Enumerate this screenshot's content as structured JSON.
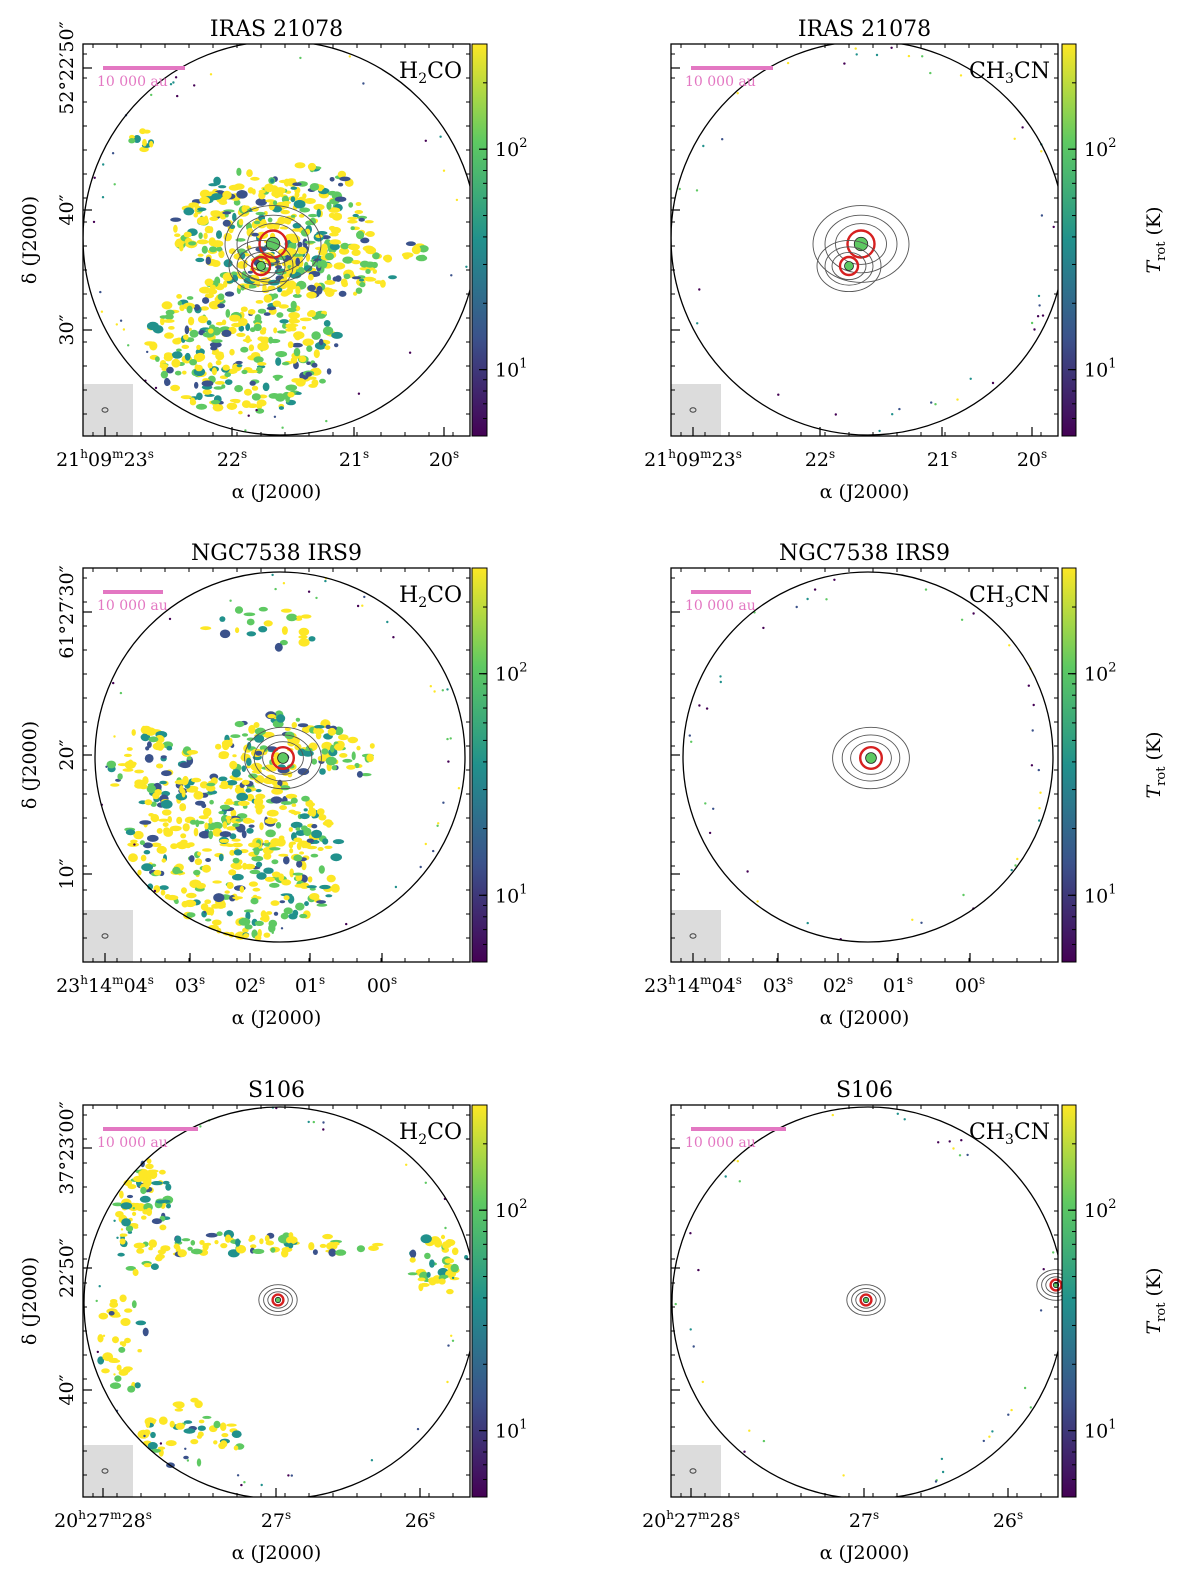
{
  "figure": {
    "ra_label": "α (J2000)",
    "dec_label": "δ (J2000)",
    "colorbar_label": "T",
    "colorbar_sub": "rot",
    "colorbar_unit": "(K)",
    "scale_bar_label": "10 000 au",
    "colormap": [
      "#440154",
      "#3b528b",
      "#21918c",
      "#5ec962",
      "#fde725"
    ]
  },
  "chart_data": [
    {
      "type": "heatmap",
      "title": "IRAS 21078",
      "molecule_main": "H",
      "molecule_sub": "2",
      "molecule_rest": "CO",
      "ra_ticks": [
        {
          "h": "21",
          "m": "09",
          "s": "23",
          "full": true
        },
        {
          "s": "22"
        },
        {
          "s": "21"
        },
        {
          "s": "20"
        }
      ],
      "dec_ticks": [
        {
          "label": "52°22′50″"
        },
        {
          "label": "40″"
        },
        {
          "label": "30″"
        }
      ],
      "colorbar": {
        "scale": "log",
        "range": [
          5,
          300
        ],
        "ticks": [
          {
            "base": "10",
            "exp": "2",
            "value": 100
          },
          {
            "base": "10",
            "exp": "1",
            "value": 10
          }
        ]
      },
      "show_colorbar_label": false
    },
    {
      "type": "heatmap",
      "title": "IRAS 21078",
      "molecule_main": "CH",
      "molecule_sub": "3",
      "molecule_rest": "CN",
      "ra_ticks": [
        {
          "h": "21",
          "m": "09",
          "s": "23",
          "full": true
        },
        {
          "s": "22"
        },
        {
          "s": "21"
        },
        {
          "s": "20"
        }
      ],
      "dec_ticks": [],
      "colorbar": {
        "scale": "log",
        "range": [
          5,
          300
        ],
        "ticks": [
          {
            "base": "10",
            "exp": "2",
            "value": 100
          },
          {
            "base": "10",
            "exp": "1",
            "value": 10
          }
        ]
      },
      "show_colorbar_label": true
    },
    {
      "type": "heatmap",
      "title": "NGC7538 IRS9",
      "molecule_main": "H",
      "molecule_sub": "2",
      "molecule_rest": "CO",
      "ra_ticks": [
        {
          "h": "23",
          "m": "14",
          "s": "04",
          "full": true
        },
        {
          "s": "03"
        },
        {
          "s": "02"
        },
        {
          "s": "01"
        },
        {
          "s": "00"
        }
      ],
      "dec_ticks": [
        {
          "label": "61°27′30″"
        },
        {
          "label": "20″"
        },
        {
          "label": "10″"
        }
      ],
      "colorbar": {
        "scale": "log",
        "range": [
          5,
          300
        ],
        "ticks": [
          {
            "base": "10",
            "exp": "2",
            "value": 100
          },
          {
            "base": "10",
            "exp": "1",
            "value": 10
          }
        ]
      },
      "show_colorbar_label": false
    },
    {
      "type": "heatmap",
      "title": "NGC7538 IRS9",
      "molecule_main": "CH",
      "molecule_sub": "3",
      "molecule_rest": "CN",
      "ra_ticks": [
        {
          "h": "23",
          "m": "14",
          "s": "04",
          "full": true
        },
        {
          "s": "03"
        },
        {
          "s": "02"
        },
        {
          "s": "01"
        },
        {
          "s": "00"
        }
      ],
      "dec_ticks": [],
      "colorbar": {
        "scale": "log",
        "range": [
          5,
          300
        ],
        "ticks": [
          {
            "base": "10",
            "exp": "2",
            "value": 100
          },
          {
            "base": "10",
            "exp": "1",
            "value": 10
          }
        ]
      },
      "show_colorbar_label": true
    },
    {
      "type": "heatmap",
      "title": "S106",
      "molecule_main": "H",
      "molecule_sub": "2",
      "molecule_rest": "CO",
      "ra_ticks": [
        {
          "h": "20",
          "m": "27",
          "s": "28",
          "full": true
        },
        {
          "s": "27"
        },
        {
          "s": "26"
        }
      ],
      "dec_ticks": [
        {
          "label": "37°23′00″"
        },
        {
          "label": "22′50″"
        },
        {
          "label": "40″"
        }
      ],
      "colorbar": {
        "scale": "log",
        "range": [
          5,
          300
        ],
        "ticks": [
          {
            "base": "10",
            "exp": "2",
            "value": 100
          },
          {
            "base": "10",
            "exp": "1",
            "value": 10
          }
        ]
      },
      "show_colorbar_label": false
    },
    {
      "type": "heatmap",
      "title": "S106",
      "molecule_main": "CH",
      "molecule_sub": "3",
      "molecule_rest": "CN",
      "ra_ticks": [
        {
          "h": "20",
          "m": "27",
          "s": "28",
          "full": true
        },
        {
          "s": "27"
        },
        {
          "s": "26"
        }
      ],
      "dec_ticks": [],
      "colorbar": {
        "scale": "log",
        "range": [
          5,
          300
        ],
        "ticks": [
          {
            "base": "10",
            "exp": "2",
            "value": 100
          },
          {
            "base": "10",
            "exp": "1",
            "value": 10
          }
        ]
      },
      "show_colorbar_label": true
    }
  ]
}
